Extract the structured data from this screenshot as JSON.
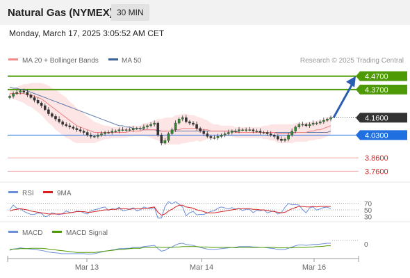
{
  "header": {
    "title": "Natural Gas (NYMEX)",
    "timeframe": "30 MIN",
    "datetime": "Monday, March 17, 2025 3:05:52 AM CET"
  },
  "credit": "Research © 2025 Trading Central",
  "colors": {
    "green": "#4e9a06",
    "blue": "#1f6fe0",
    "red": "#f2a4a4",
    "ma50": "#3a5f9a",
    "bollinger_fill": "#fde0e0",
    "rsi": "#6a8fd8",
    "ma9": "#d62020",
    "macd": "#6a8fd8",
    "macd_signal": "#4e9a06"
  },
  "chart_data": [
    {
      "type": "candlestick",
      "legend": [
        {
          "label": "MA 20 + Bollinger Bands",
          "color": "#f28c8c"
        },
        {
          "label": "MA 50",
          "color": "#3a5f9a"
        }
      ],
      "ylim": [
        3.7,
        4.53
      ],
      "levels": [
        {
          "value": 4.47,
          "label": "4.4700",
          "style": "resistance"
        },
        {
          "value": 4.37,
          "label": "4.3700",
          "style": "resistance"
        },
        {
          "value": 4.16,
          "label": "4.1600",
          "style": "last-price"
        },
        {
          "value": 4.03,
          "label": "4.0300",
          "style": "pivot"
        },
        {
          "value": 3.86,
          "label": "3.8600",
          "style": "support"
        },
        {
          "value": 3.76,
          "label": "3.7600",
          "style": "support"
        }
      ],
      "x_ticks": [
        "Mar 13",
        "Mar 14",
        "Mar 16"
      ],
      "close": [
        4.32,
        4.34,
        4.35,
        4.36,
        4.35,
        4.33,
        4.31,
        4.29,
        4.27,
        4.25,
        4.22,
        4.19,
        4.17,
        4.15,
        4.13,
        4.11,
        4.1,
        4.09,
        4.08,
        4.07,
        4.06,
        4.05,
        4.03,
        4.02,
        4.02,
        4.03,
        4.04,
        4.05,
        4.05,
        4.06,
        4.06,
        4.07,
        4.07,
        4.07,
        4.07,
        4.08,
        4.08,
        4.08,
        4.09,
        4.1,
        4.11,
        4.12,
        4.03,
        3.97,
        3.99,
        4.04,
        4.07,
        4.12,
        4.15,
        4.16,
        4.13,
        4.12,
        4.11,
        4.08,
        4.06,
        4.04,
        4.02,
        4.01,
        4.01,
        4.02,
        4.03,
        4.04,
        4.05,
        4.06,
        4.06,
        4.07,
        4.07,
        4.07,
        4.07,
        4.06,
        4.06,
        4.05,
        4.05,
        4.04,
        4.03,
        4.02,
        4.0,
        3.99,
        4.0,
        4.03,
        4.06,
        4.09,
        4.11,
        4.11,
        4.1,
        4.11,
        4.12,
        4.12,
        4.13,
        4.14,
        4.15,
        4.16
      ],
      "ma20": [
        4.34,
        4.34,
        4.34,
        4.34,
        4.34,
        4.33,
        4.33,
        4.32,
        4.31,
        4.3,
        4.28,
        4.26,
        4.24,
        4.22,
        4.2,
        4.18,
        4.16,
        4.14,
        4.12,
        4.1,
        4.09,
        4.08,
        4.07,
        4.06,
        4.05,
        4.05,
        4.05,
        4.05,
        4.05,
        4.05,
        4.05,
        4.05,
        4.05,
        4.05,
        4.06,
        4.06,
        4.06,
        4.06,
        4.07,
        4.07,
        4.07,
        4.07,
        4.07,
        4.06,
        4.06,
        4.06,
        4.06,
        4.07,
        4.07,
        4.08,
        4.08,
        4.08,
        4.08,
        4.08,
        4.07,
        4.07,
        4.07,
        4.06,
        4.06,
        4.06,
        4.06,
        4.06,
        4.06,
        4.06,
        4.05,
        4.05,
        4.05,
        4.05,
        4.05,
        4.05,
        4.05,
        4.05,
        4.05,
        4.05,
        4.05,
        4.05,
        4.04,
        4.04,
        4.04,
        4.04,
        4.04,
        4.05,
        4.05,
        4.05,
        4.05,
        4.06,
        4.06,
        4.07,
        4.07,
        4.08,
        4.09,
        4.1
      ],
      "ma50": [
        4.39,
        4.38,
        4.38,
        4.37,
        4.37,
        4.36,
        4.35,
        4.34,
        4.33,
        4.32,
        4.31,
        4.3,
        4.29,
        4.28,
        4.27,
        4.26,
        4.25,
        4.24,
        4.23,
        4.22,
        4.21,
        4.2,
        4.19,
        4.18,
        4.17,
        4.16,
        4.15,
        4.14,
        4.13,
        4.12,
        4.11,
        4.1,
        4.1,
        4.09,
        4.09,
        4.08,
        4.08,
        4.08,
        4.07,
        4.07,
        4.07,
        4.07,
        4.06,
        4.06,
        4.06,
        4.06,
        4.06,
        4.06,
        4.06,
        4.06,
        4.06,
        4.06,
        4.06,
        4.06,
        4.06,
        4.06,
        4.06,
        4.06,
        4.06,
        4.06,
        4.06,
        4.06,
        4.06,
        4.06,
        4.06,
        4.05,
        4.05,
        4.05,
        4.05,
        4.05,
        4.05,
        4.05,
        4.05,
        4.05,
        4.05,
        4.05,
        4.05,
        4.05,
        4.05,
        4.05,
        4.05,
        4.05,
        4.05,
        4.05,
        4.05,
        4.05,
        4.05,
        4.05,
        4.05,
        4.05,
        4.05,
        4.06
      ],
      "bollinger_width": [
        0.03,
        0.04,
        0.05,
        0.06,
        0.07,
        0.08,
        0.09,
        0.1,
        0.11,
        0.12,
        0.13,
        0.14,
        0.14,
        0.15,
        0.15,
        0.15,
        0.15,
        0.14,
        0.14,
        0.13,
        0.12,
        0.11,
        0.1,
        0.09,
        0.08,
        0.07,
        0.06,
        0.05,
        0.05,
        0.04,
        0.04,
        0.04,
        0.04,
        0.04,
        0.04,
        0.04,
        0.04,
        0.04,
        0.05,
        0.05,
        0.06,
        0.07,
        0.08,
        0.09,
        0.1,
        0.1,
        0.1,
        0.11,
        0.11,
        0.11,
        0.11,
        0.1,
        0.1,
        0.09,
        0.09,
        0.08,
        0.07,
        0.06,
        0.05,
        0.05,
        0.04,
        0.04,
        0.04,
        0.04,
        0.04,
        0.04,
        0.04,
        0.04,
        0.04,
        0.04,
        0.04,
        0.04,
        0.05,
        0.05,
        0.06,
        0.06,
        0.07,
        0.07,
        0.07,
        0.07,
        0.07,
        0.07,
        0.07,
        0.07,
        0.07,
        0.07,
        0.07,
        0.07,
        0.07,
        0.07,
        0.07,
        0.07
      ],
      "projection": [
        4.16,
        4.47
      ]
    },
    {
      "type": "line",
      "legend": [
        {
          "label": "RSI",
          "color": "#6a8fd8"
        },
        {
          "label": "9MA",
          "color": "#d62020"
        }
      ],
      "ylim": [
        20,
        80
      ],
      "y_ticks": [
        {
          "value": 70,
          "label": "70"
        },
        {
          "value": 50,
          "label": "50"
        },
        {
          "value": 30,
          "label": "30"
        }
      ]
    },
    {
      "type": "line",
      "legend": [
        {
          "label": "MACD",
          "color": "#6a8fd8"
        },
        {
          "label": "MACD Signal",
          "color": "#4e9a06"
        }
      ],
      "y_ticks": [
        {
          "value": 0,
          "label": "0"
        }
      ]
    }
  ]
}
